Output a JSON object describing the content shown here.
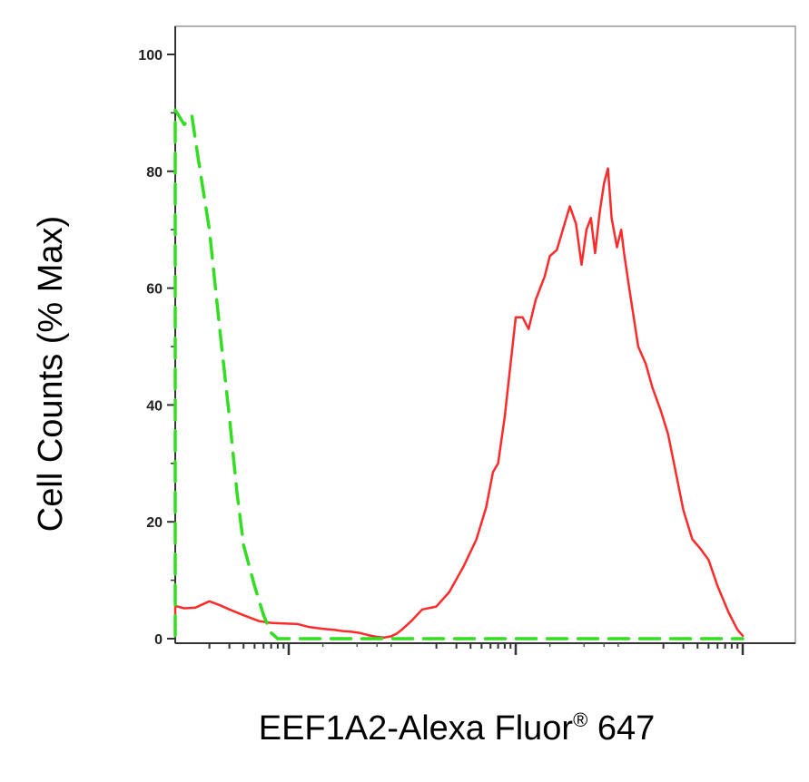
{
  "chart_data": {
    "type": "line",
    "title": "",
    "ylabel": "Cell Counts (% Max)",
    "xlabel": {
      "main": "EEF1A2-Alexa Fluor",
      "mark": "®",
      "suffix": " 647"
    },
    "x_scale": "log",
    "xlim": [
      1,
      1000000
    ],
    "ylim": [
      0,
      100
    ],
    "y_ticks": [
      "0",
      "20",
      "40",
      "60",
      "80",
      "100"
    ],
    "grid": false,
    "series": [
      {
        "color": "#ff2a2a",
        "style": "solid",
        "x": [
          1,
          1.5,
          2.5,
          4,
          6,
          8,
          10,
          12,
          15,
          20,
          25,
          30,
          40,
          55,
          70,
          90,
          120,
          150,
          200,
          250,
          300,
          350,
          420,
          500,
          600,
          700,
          800,
          900,
          1000,
          1200,
          1500,
          2000,
          2600,
          3500,
          4500,
          5500,
          6300,
          7000,
          8000,
          9000,
          10000,
          11500,
          13000,
          15000,
          18000,
          20000,
          23000,
          26000,
          30000,
          34000,
          38000,
          42000,
          46000,
          50000,
          55000,
          60000,
          65000,
          70000,
          78000,
          85000,
          90000,
          100000,
          120000,
          140000,
          160000,
          190000,
          220000,
          260000,
          300000,
          360000,
          420000,
          500000,
          600000,
          750000,
          900000,
          1000000
        ],
        "y": [
          0.8,
          2,
          4,
          5,
          5.5,
          6,
          5.6,
          5.2,
          5.3,
          6.4,
          5.7,
          5,
          4,
          3,
          2.7,
          2.6,
          2.5,
          2,
          1.7,
          1.5,
          1.3,
          1.2,
          1,
          0.6,
          0.3,
          0.2,
          0.4,
          0.9,
          1.6,
          3,
          5,
          5.5,
          8,
          12.5,
          17,
          22.5,
          28.5,
          30,
          38,
          47,
          55,
          55,
          53,
          58,
          62,
          65.5,
          66.5,
          70,
          74,
          71,
          64,
          70,
          72,
          66,
          73,
          78,
          80.5,
          72,
          67,
          70,
          66,
          60,
          50,
          47,
          43,
          39,
          35,
          28,
          22,
          17,
          15.5,
          13.5,
          9,
          4.5,
          1.5,
          0.5
        ]
      },
      {
        "color": "#33dd22",
        "style": "dashed",
        "x": [
          1,
          1.5,
          2.2,
          3,
          4,
          5,
          6,
          7,
          8,
          9,
          10,
          12,
          14,
          16,
          20,
          25,
          30,
          35,
          40,
          50,
          60,
          70,
          80,
          1000000
        ],
        "y": [
          0.5,
          4,
          8.5,
          15,
          22,
          28,
          40,
          55,
          70,
          82,
          90.5,
          88,
          89.5,
          82,
          70,
          52,
          38,
          25,
          16,
          9,
          4,
          1,
          0,
          0
        ]
      }
    ]
  }
}
